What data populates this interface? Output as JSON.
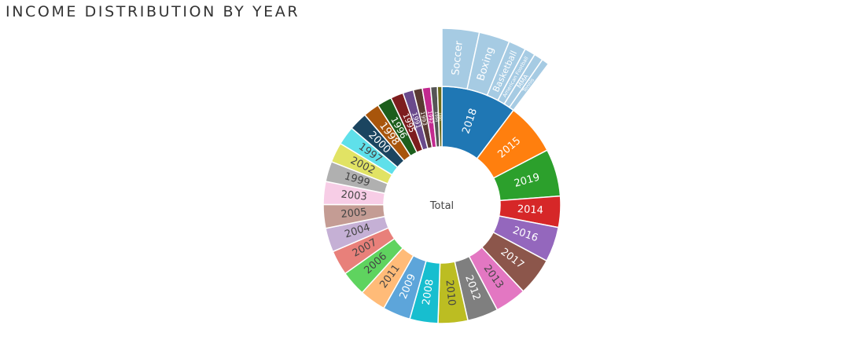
{
  "title": "INCOME DISTRIBUTION BY YEAR",
  "chart_data": {
    "type": "sunburst",
    "title": "INCOME DISTRIBUTION BY YEAR",
    "center_label": "Total",
    "years": [
      {
        "label": "2018",
        "value": 1004,
        "color": "#1f77b4",
        "children": [
          {
            "label": "Soccer",
            "value": 332
          },
          {
            "label": "Boxing",
            "value": 275
          },
          {
            "label": "Basketball",
            "value": 155
          },
          {
            "label": "American Football",
            "value": 96
          },
          {
            "label": "MMA",
            "value": 81
          },
          {
            "label": "Tennis",
            "value": 65
          }
        ]
      },
      {
        "label": "2015",
        "value": 690,
        "color": "#ff7f0e"
      },
      {
        "label": "2019",
        "value": 630,
        "color": "#2ca02c"
      },
      {
        "label": "2014",
        "value": 415,
        "color": "#d62728"
      },
      {
        "label": "2016",
        "value": 465,
        "color": "#9467bd"
      },
      {
        "label": "2017",
        "value": 505,
        "color": "#8c564b"
      },
      {
        "label": "2013",
        "value": 420,
        "color": "#e377c2"
      },
      {
        "label": "2012",
        "value": 410,
        "color": "#7f7f7f"
      },
      {
        "label": "2010",
        "value": 395,
        "color": "#bcbd22"
      },
      {
        "label": "2008",
        "value": 375,
        "color": "#17becf"
      },
      {
        "label": "2009",
        "value": 370,
        "color": "#5da5da"
      },
      {
        "label": "2011",
        "value": 350,
        "color": "#ffbb78"
      },
      {
        "label": "2006",
        "value": 335,
        "color": "#5fd35f"
      },
      {
        "label": "2007",
        "value": 330,
        "color": "#e8807a"
      },
      {
        "label": "2004",
        "value": 320,
        "color": "#c5b0d5"
      },
      {
        "label": "2005",
        "value": 315,
        "color": "#c49c94"
      },
      {
        "label": "2003",
        "value": 305,
        "color": "#f7cde6"
      },
      {
        "label": "1999",
        "value": 270,
        "color": "#b0b0b0"
      },
      {
        "label": "2002",
        "value": 265,
        "color": "#e1e364"
      },
      {
        "label": "1997",
        "value": 250,
        "color": "#5fe0ea"
      },
      {
        "label": "2000",
        "value": 245,
        "color": "#1b4560"
      },
      {
        "label": "1998",
        "value": 215,
        "color": "#a8550b"
      },
      {
        "label": "1996",
        "value": 195,
        "color": "#1c5e1c"
      },
      {
        "label": "1995",
        "value": 170,
        "color": "#7d1d1e"
      },
      {
        "label": "1991",
        "value": 140,
        "color": "#6a4a8c"
      },
      {
        "label": "1993",
        "value": 120,
        "color": "#5a3a33"
      },
      {
        "label": "1992",
        "value": 110,
        "color": "#c2298f"
      },
      {
        "label": "1994",
        "value": 90,
        "color": "#555555"
      },
      {
        "label": "1990",
        "value": 60,
        "color": "#6b6b1a"
      }
    ]
  }
}
